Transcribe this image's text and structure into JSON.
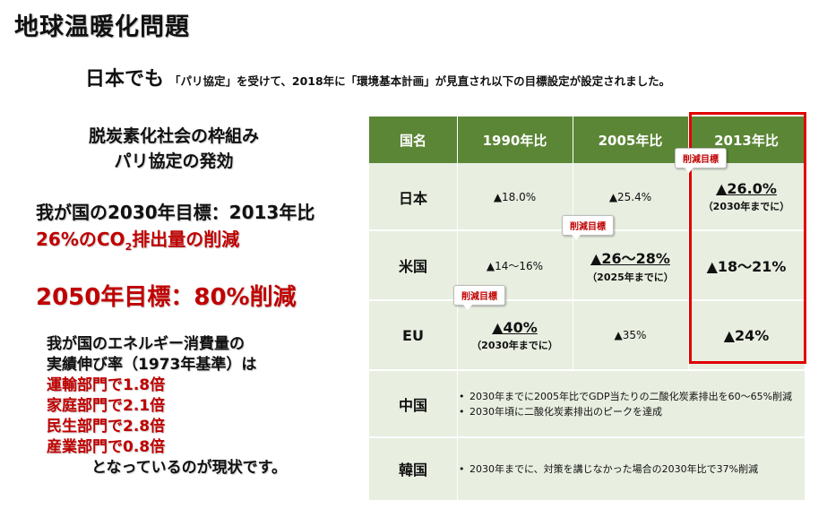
{
  "title": "地球温暖化問題",
  "subtitle": {
    "lead": "日本でも",
    "rest": "「パリ協定」を受けて、2018年に「環境基本計画」が見直され以下の目標設定が設定されました。"
  },
  "left": {
    "frame_line1": "脱炭素化社会の枠組み",
    "frame_line2": "パリ協定の発効",
    "target2030_line1": "我が国の2030年目標：2013年比",
    "target2030_line2a": "26%のCO",
    "target2030_sub": "2",
    "target2030_line2b": "排出量の削減",
    "target2050": "2050年目標：80%削減",
    "growth_line1": "我が国のエネルギー消費量の",
    "growth_line2": "実績伸び率（1973年基準）は",
    "sectors": [
      "運輸部門で1.8倍",
      "家庭部門で2.1倍",
      "民生部門で2.8倍",
      "産業部門で0.8倍"
    ],
    "closing": "となっているのが現状です。"
  },
  "table": {
    "headers": [
      "国名",
      "1990年比",
      "2005年比",
      "2013年比"
    ],
    "rows": {
      "japan": {
        "name": "日本",
        "v1990": "▲18.0%",
        "v2005": "▲25.4%",
        "v2013": "▲26.0%",
        "v2013_note": "（2030年までに）"
      },
      "us": {
        "name": "米国",
        "v1990": "▲14～16%",
        "v2005": "▲26～28%",
        "v2005_note": "（2025年までに）",
        "v2013": "▲18～21%"
      },
      "eu": {
        "name": "EU",
        "v1990": "▲40%",
        "v1990_note": "（2030年までに）",
        "v2005": "▲35%",
        "v2013": "▲24%"
      },
      "china": {
        "name": "中国",
        "bullets": [
          "2030年までに2005年比でGDP当たりの二酸化炭素排出を60～65%削減",
          "2030年頃に二酸化炭素排出のピークを達成"
        ]
      },
      "korea": {
        "name": "韓国",
        "bullets": [
          "2030年までに、対策を講じなかった場合の2030年比で37%削減"
        ]
      }
    },
    "callout_label": "削減目標"
  },
  "colors": {
    "header_green": "#5b8636",
    "table_bg": "#e8eee0",
    "accent_red": "#c00000",
    "highlight_border": "#e00000"
  }
}
